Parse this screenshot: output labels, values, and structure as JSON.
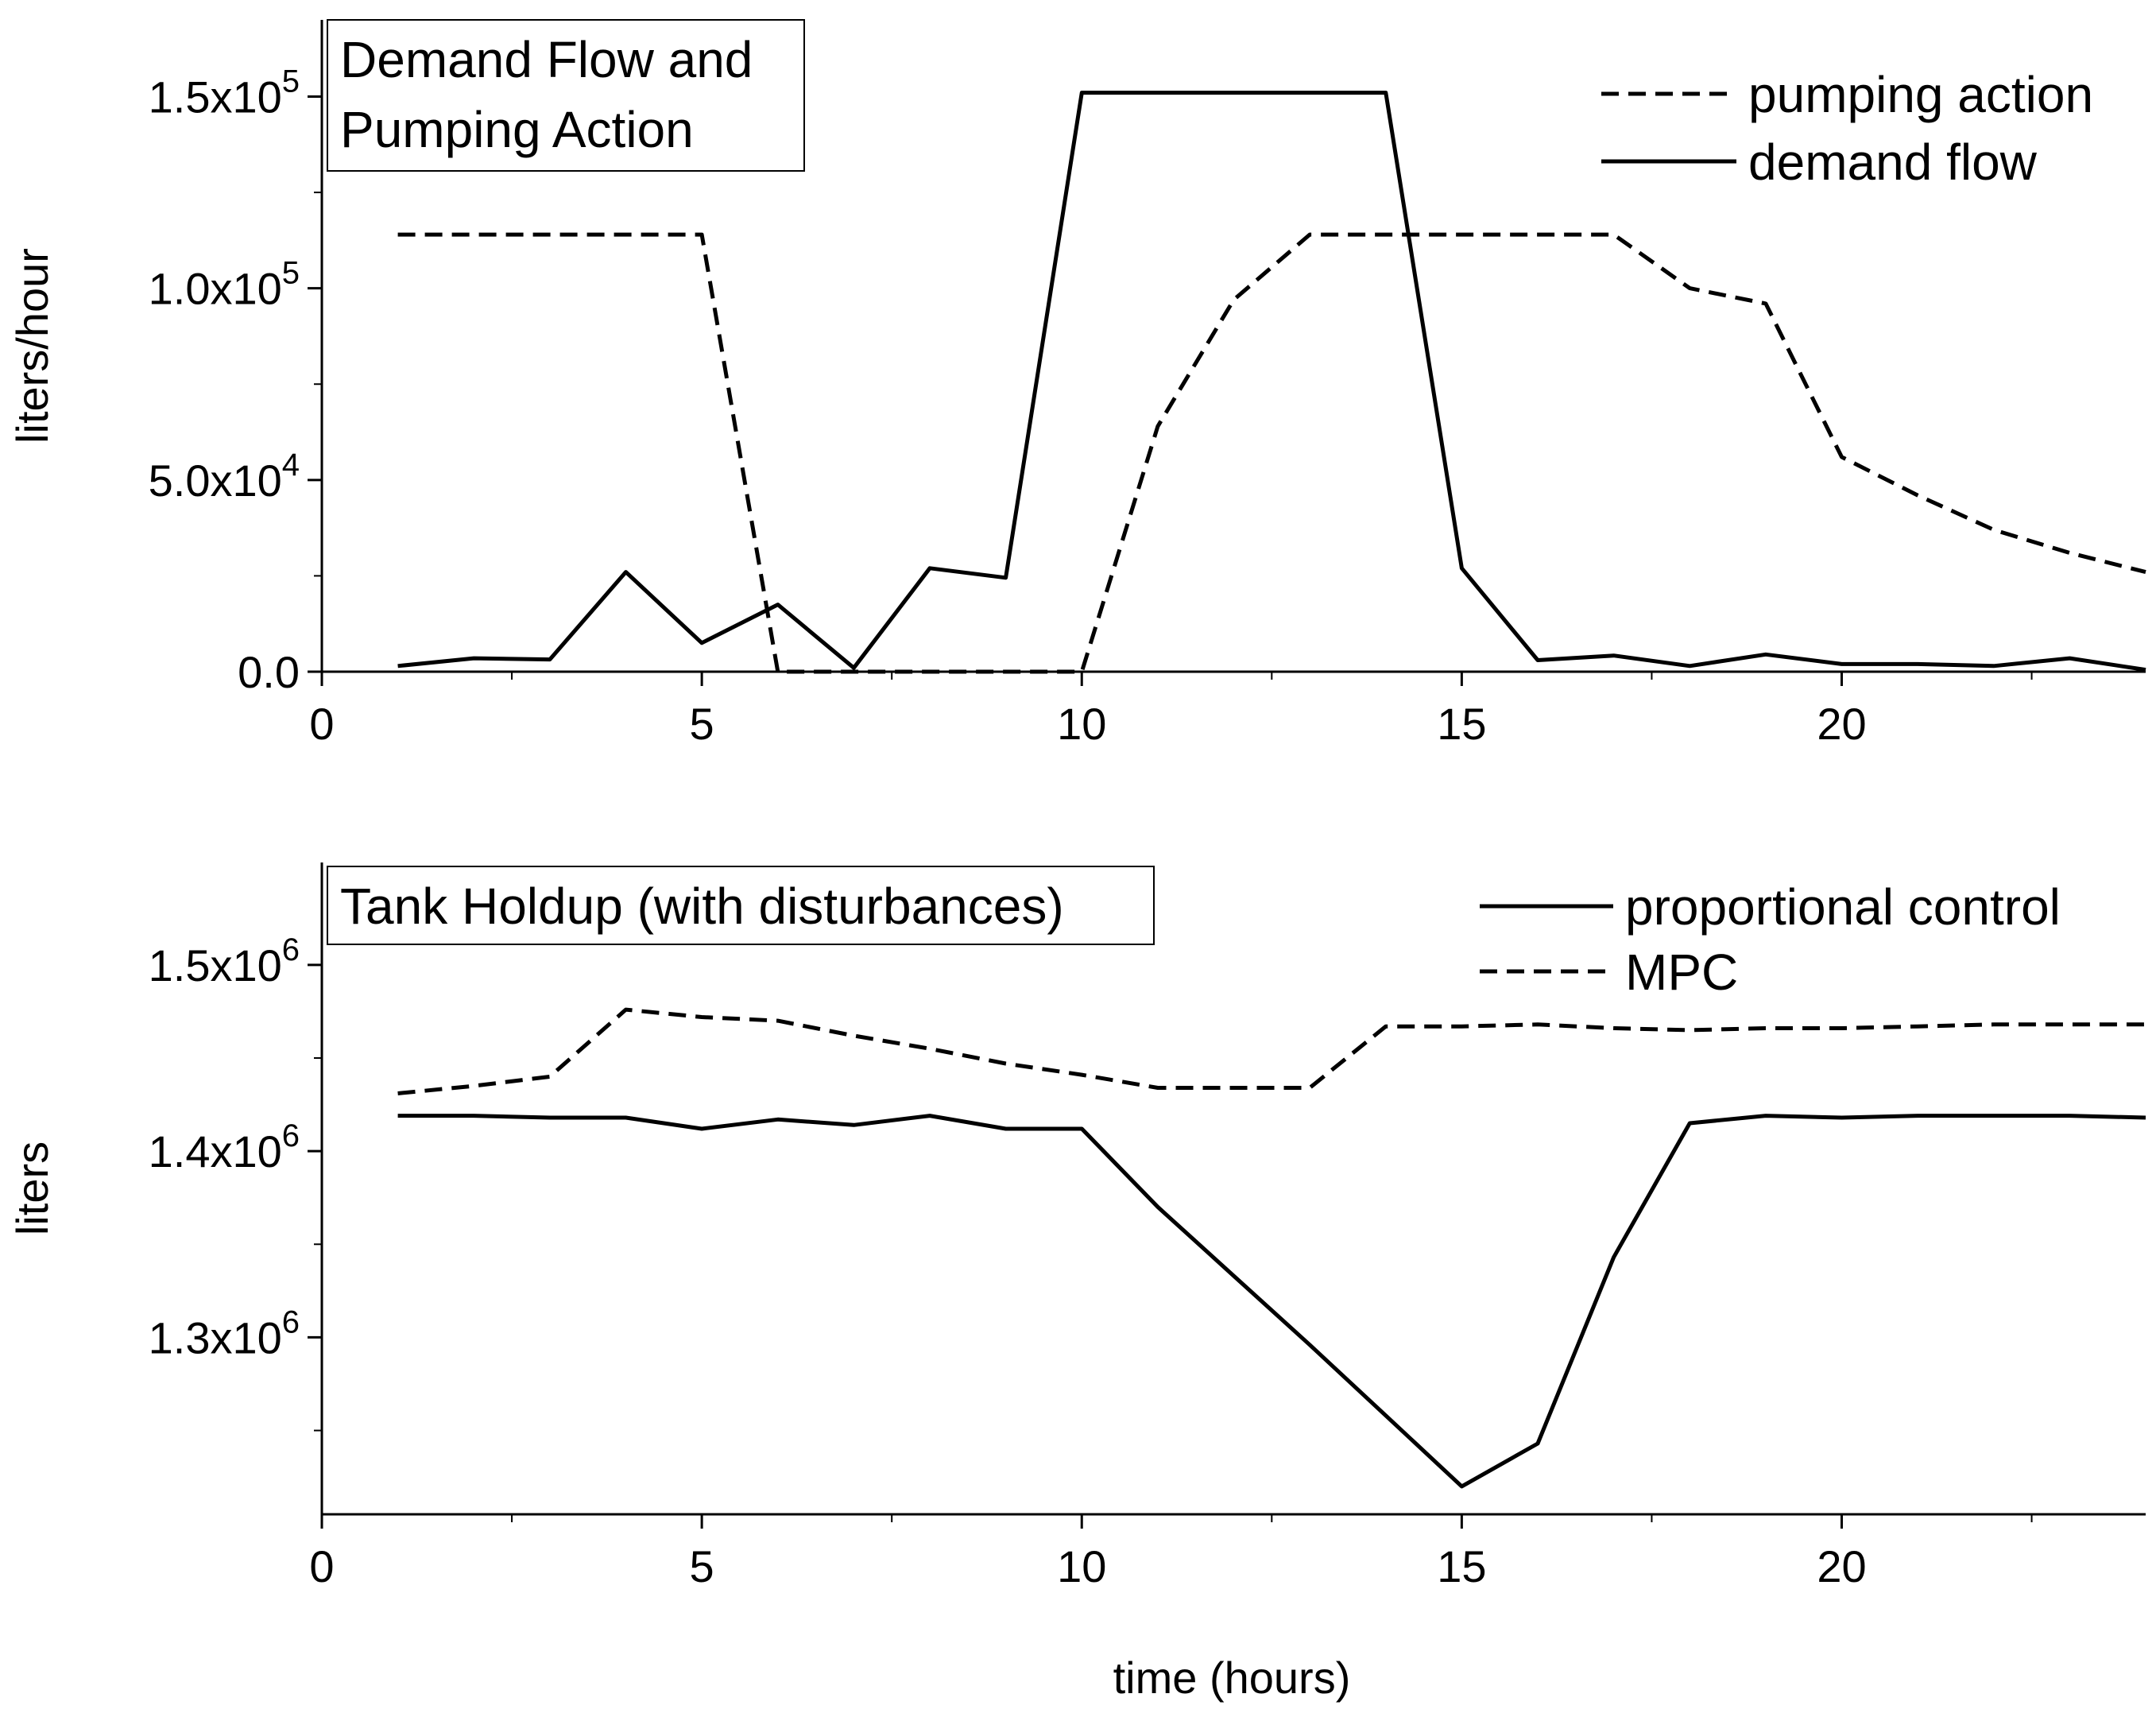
{
  "chart_data": [
    {
      "type": "line",
      "title_lines": [
        "Demand Flow and",
        "Pumping Action"
      ],
      "xlabel": "",
      "ylabel": "liters/hour",
      "xlim": [
        0,
        24
      ],
      "ylim": [
        0,
        170000
      ],
      "grid": false,
      "legend_position": "top-right",
      "x_ticks": [
        {
          "value": 0,
          "label": "0"
        },
        {
          "value": 5,
          "label": "5"
        },
        {
          "value": 10,
          "label": "10"
        },
        {
          "value": 15,
          "label": "15"
        },
        {
          "value": 20,
          "label": "20"
        }
      ],
      "x_minor_ticks": [
        2.5,
        7.5,
        12.5,
        17.5,
        22.5
      ],
      "y_ticks": [
        {
          "value": 0,
          "mantissa": "0.0",
          "exponent": ""
        },
        {
          "value": 50000,
          "mantissa": "5.0x10",
          "exponent": "4"
        },
        {
          "value": 100000,
          "mantissa": "1.0x10",
          "exponent": "5"
        },
        {
          "value": 150000,
          "mantissa": "1.5x10",
          "exponent": "5"
        }
      ],
      "y_minor_ticks": [
        25000,
        75000,
        125000
      ],
      "series": [
        {
          "name": "pumping action",
          "style": "dashed",
          "color": "#000000",
          "x": [
            1,
            2,
            3,
            4,
            5,
            6,
            7,
            8,
            9,
            10,
            11,
            12,
            13,
            14,
            15,
            16,
            17,
            18,
            19,
            20,
            21,
            22,
            23,
            24
          ],
          "y": [
            114000,
            114000,
            114000,
            114000,
            114000,
            0,
            0,
            0,
            0,
            0,
            64000,
            97000,
            114000,
            114000,
            114000,
            114000,
            114000,
            100000,
            96000,
            56000,
            46000,
            37000,
            31000,
            26000
          ]
        },
        {
          "name": "demand flow",
          "style": "solid",
          "color": "#000000",
          "x": [
            1,
            2,
            3,
            4,
            5,
            6,
            7,
            8,
            9,
            10,
            11,
            12,
            13,
            14,
            15,
            16,
            17,
            18,
            19,
            20,
            21,
            22,
            23,
            24
          ],
          "y": [
            1500,
            3500,
            3200,
            26000,
            7500,
            17500,
            1000,
            27000,
            24500,
            151000,
            151000,
            151000,
            151000,
            151000,
            27000,
            3000,
            4200,
            1500,
            4500,
            2000,
            2000,
            1500,
            3500,
            500
          ]
        }
      ]
    },
    {
      "type": "line",
      "title_lines": [
        "Tank Holdup (with disturbances)"
      ],
      "xlabel": "time (hours)",
      "ylabel": "liters",
      "xlim": [
        0,
        24
      ],
      "ylim": [
        1205000,
        1555000
      ],
      "grid": false,
      "legend_position": "top-right",
      "x_ticks": [
        {
          "value": 0,
          "label": "0"
        },
        {
          "value": 5,
          "label": "5"
        },
        {
          "value": 10,
          "label": "10"
        },
        {
          "value": 15,
          "label": "15"
        },
        {
          "value": 20,
          "label": "20"
        }
      ],
      "x_minor_ticks": [
        2.5,
        7.5,
        12.5,
        17.5,
        22.5
      ],
      "y_ticks": [
        {
          "value": 1300000,
          "mantissa": "1.3x10",
          "exponent": "6"
        },
        {
          "value": 1400000,
          "mantissa": "1.4x10",
          "exponent": "6"
        },
        {
          "value": 1500000,
          "mantissa": "1.5x10",
          "exponent": "6"
        }
      ],
      "y_minor_ticks": [
        1250000,
        1350000,
        1450000
      ],
      "series": [
        {
          "name": "proportional control",
          "style": "solid",
          "color": "#000000",
          "x": [
            1,
            2,
            3,
            4,
            5,
            6,
            7,
            8,
            9,
            10,
            11,
            12,
            13,
            14,
            15,
            16,
            17,
            18,
            19,
            20,
            21,
            22,
            23,
            24
          ],
          "y": [
            1419000,
            1419000,
            1418000,
            1418000,
            1412000,
            1417000,
            1414000,
            1419000,
            1412000,
            1412000,
            1370000,
            1333000,
            1296000,
            1258000,
            1220000,
            1243000,
            1343000,
            1415000,
            1419000,
            1418000,
            1419000,
            1419000,
            1419000,
            1418000
          ]
        },
        {
          "name": "MPC",
          "style": "dashed",
          "color": "#000000",
          "x": [
            1,
            2,
            3,
            4,
            5,
            6,
            7,
            8,
            9,
            10,
            11,
            12,
            13,
            14,
            15,
            16,
            17,
            18,
            19,
            20,
            21,
            22,
            23,
            24
          ],
          "y": [
            1431000,
            1435000,
            1440000,
            1476000,
            1472000,
            1470000,
            1462000,
            1455000,
            1447000,
            1441000,
            1434000,
            1434000,
            1434000,
            1467000,
            1467000,
            1468000,
            1466000,
            1465000,
            1466000,
            1466000,
            1467000,
            1468000,
            1468000,
            1468000
          ]
        }
      ]
    }
  ]
}
